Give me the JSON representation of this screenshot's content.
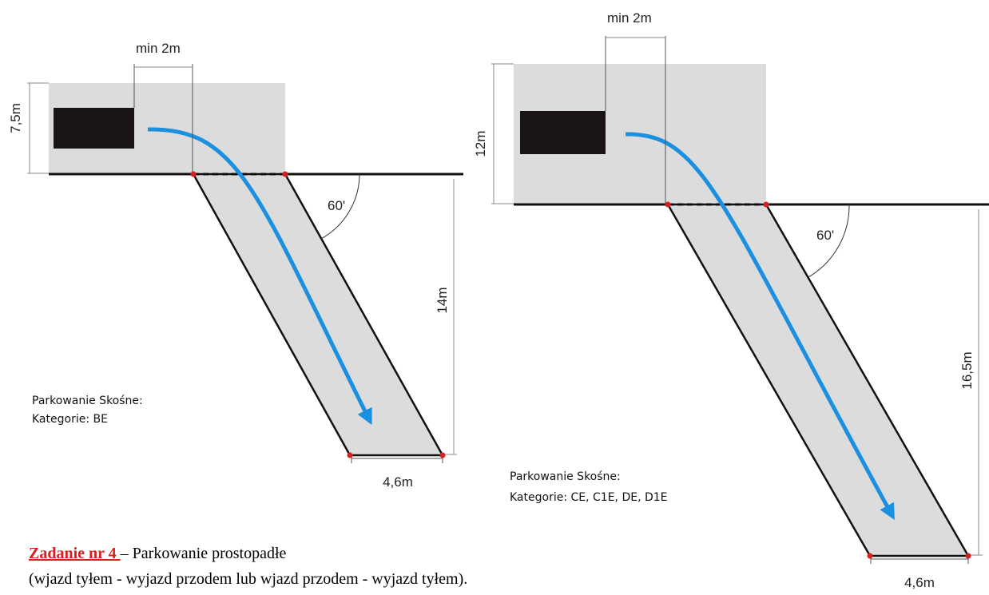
{
  "diagram_left": {
    "dimensions": {
      "gap": "min 2m",
      "depth": "7,5m",
      "angle": "60'",
      "length": "14m",
      "width": "4,6m"
    },
    "caption": {
      "line1": "Parkowanie Skośne:",
      "line2": "Kategorie: BE"
    }
  },
  "diagram_right": {
    "dimensions": {
      "gap": "min 2m",
      "depth": "12m",
      "angle": "60'",
      "length": "16,5m",
      "width": "4,6m"
    },
    "caption": {
      "line1": "Parkowanie Skośne:",
      "line2": "Kategorie: CE, C1E, DE, D1E"
    }
  },
  "task": {
    "title": "Zadanie nr 4 ",
    "title_rest": " – Parkowanie prostopadłe",
    "line2": "(wjazd tyłem - wyjazd przodem lub wjazd przodem - wyjazd tyłem)."
  },
  "colors": {
    "area": "#dcdcdc",
    "vehicle": "#1a1414",
    "arrow": "#1b8fe0",
    "marker": "#d42020",
    "title": "#d82020"
  }
}
